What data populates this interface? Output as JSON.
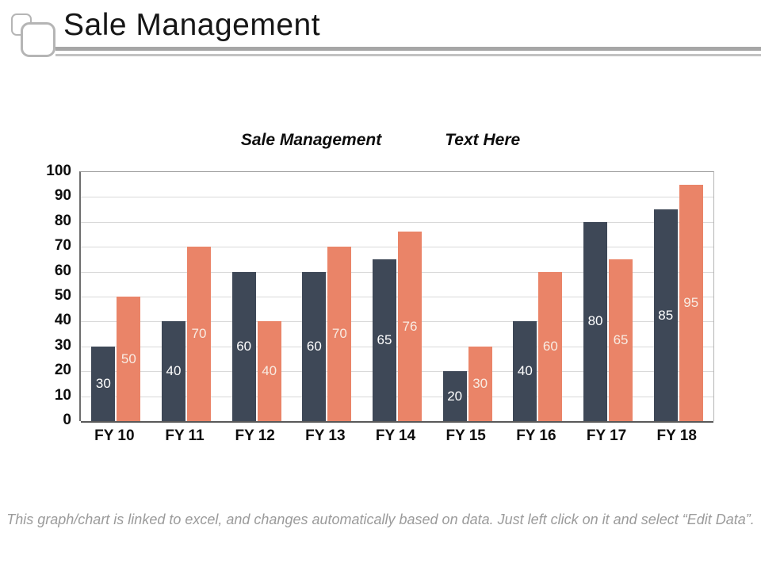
{
  "header": {
    "title": "Sale Management"
  },
  "legend": [
    {
      "label": "Sale Management",
      "color": "#3e4857"
    },
    {
      "label": "Text Here",
      "color": "#ea8468"
    }
  ],
  "chart_data": {
    "type": "bar",
    "title": "",
    "xlabel": "",
    "ylabel": "",
    "categories": [
      "FY 10",
      "FY 11",
      "FY 12",
      "FY 13",
      "FY 14",
      "FY 15",
      "FY 16",
      "FY 17",
      "FY 18"
    ],
    "series": [
      {
        "name": "Sale Management",
        "color": "#3e4857",
        "values": [
          30,
          40,
          60,
          60,
          65,
          20,
          40,
          80,
          85
        ]
      },
      {
        "name": "Text Here",
        "color": "#ea8468",
        "values": [
          50,
          70,
          40,
          70,
          76,
          30,
          60,
          65,
          95
        ]
      }
    ],
    "ylim": [
      0,
      100
    ],
    "ytick_step": 10,
    "grid": true,
    "legend_position": "top",
    "data_labels": "centered-white"
  },
  "footer": {
    "note": "This graph/chart is linked to excel, and changes automatically based on data. Just left click on it and select “Edit Data”."
  }
}
